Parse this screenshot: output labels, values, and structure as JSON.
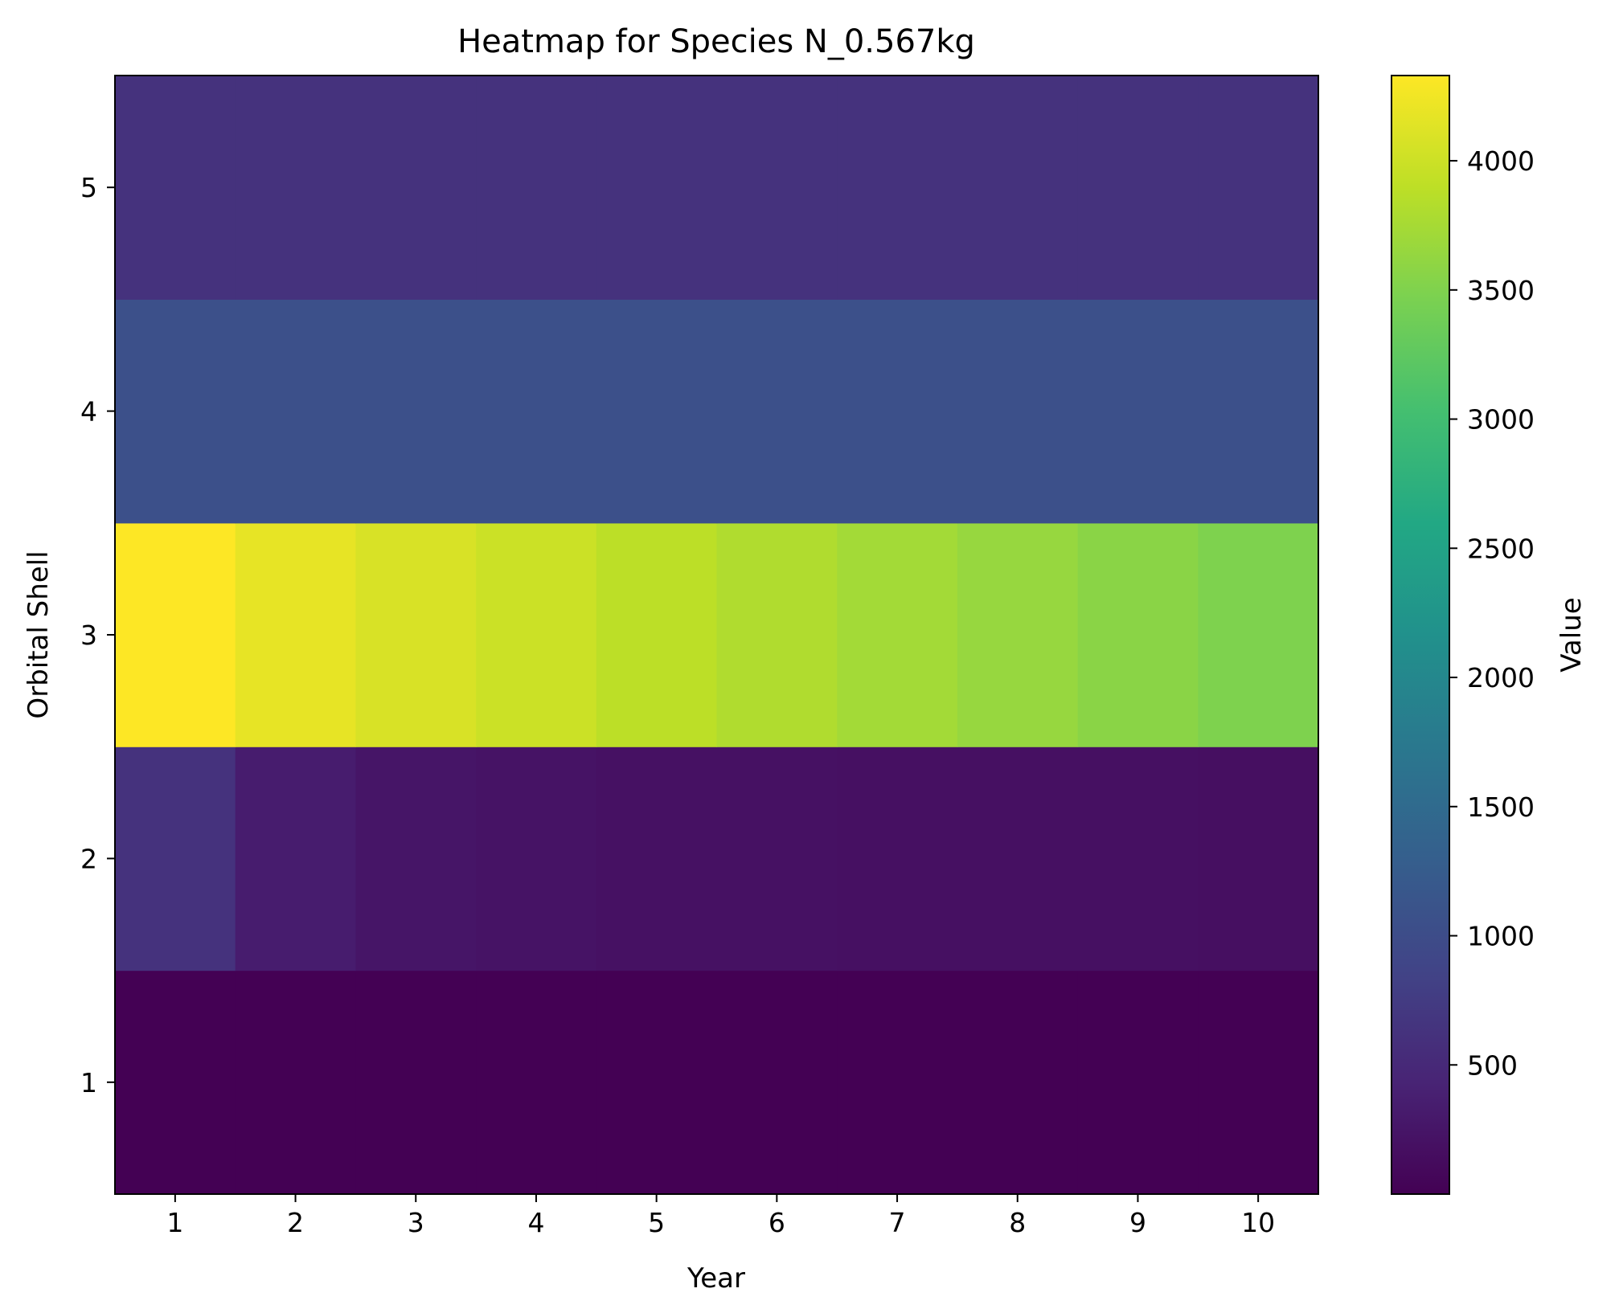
{
  "chart_data": {
    "type": "heatmap",
    "title": "Heatmap for Species N_0.567kg",
    "xlabel": "Year",
    "ylabel": "Orbital Shell",
    "colorbar_label": "Value",
    "colormap": "viridis",
    "x": [
      1,
      2,
      3,
      4,
      5,
      6,
      7,
      8,
      9,
      10
    ],
    "y": [
      1,
      2,
      3,
      4,
      5
    ],
    "color_range": [
      0,
      4330
    ],
    "colorbar_ticks": [
      500,
      1000,
      1500,
      2000,
      2500,
      3000,
      3500,
      4000
    ],
    "grid": false,
    "values": [
      [
        5,
        5,
        5,
        5,
        5,
        5,
        5,
        5,
        5,
        5
      ],
      [
        620,
        340,
        250,
        220,
        200,
        195,
        190,
        185,
        180,
        175
      ],
      [
        4330,
        4180,
        4080,
        3990,
        3890,
        3810,
        3730,
        3650,
        3570,
        3490
      ],
      [
        1060,
        1060,
        1060,
        1060,
        1060,
        1060,
        1060,
        1060,
        1060,
        1060
      ],
      [
        620,
        620,
        620,
        620,
        620,
        620,
        620,
        620,
        620,
        620
      ]
    ]
  }
}
